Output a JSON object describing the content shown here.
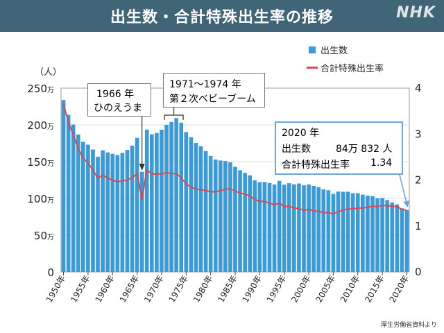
{
  "header": {
    "title": "出生数・合計特殊出生率の推移",
    "logo": "NHK"
  },
  "legend": {
    "births": "出生数",
    "tfr": "合計特殊出生率"
  },
  "annotations": {
    "hinoeuma": {
      "line1": "1966 年",
      "line2": "ひのえうま"
    },
    "babyboom": {
      "line1": "1971〜1974 年",
      "line2": "第２次ベビーブーム"
    },
    "latest": {
      "year": "2020 年",
      "births_label": "出生数",
      "births_value": "84万 832 人",
      "tfr_label": "合計特殊出生率",
      "tfr_value": "1.34"
    }
  },
  "source": "厚生労働省資料より",
  "colors": {
    "bar": "#3b9ad8",
    "line": "#d9484c",
    "header": "#3f6577",
    "annotation_border": "#6aa6dc"
  },
  "chart_data": {
    "type": "bar",
    "ylabel": "（人）",
    "ylim": [
      0,
      2500000
    ],
    "y2lim": [
      0,
      4
    ],
    "y_ticks": [
      {
        "value": 0,
        "label": "0"
      },
      {
        "value": 500000,
        "label": "50万"
      },
      {
        "value": 1000000,
        "label": "100万"
      },
      {
        "value": 1500000,
        "label": "150万"
      },
      {
        "value": 2000000,
        "label": "200万"
      },
      {
        "value": 2500000,
        "label": "250万"
      }
    ],
    "y2_ticks": [
      "0",
      "1",
      "2",
      "3",
      "4"
    ],
    "x_tick_labels": [
      "1950年",
      "1955年",
      "1960年",
      "1965年",
      "1970年",
      "1975年",
      "1980年",
      "1985年",
      "1990年",
      "1995年",
      "2000年",
      "2005年",
      "2010年",
      "2015年",
      "2020年"
    ],
    "x": [
      1950,
      1951,
      1952,
      1953,
      1954,
      1955,
      1956,
      1957,
      1958,
      1959,
      1960,
      1961,
      1962,
      1963,
      1964,
      1965,
      1966,
      1967,
      1968,
      1969,
      1970,
      1971,
      1972,
      1973,
      1974,
      1975,
      1976,
      1977,
      1978,
      1979,
      1980,
      1981,
      1982,
      1983,
      1984,
      1985,
      1986,
      1987,
      1988,
      1989,
      1990,
      1991,
      1992,
      1993,
      1994,
      1995,
      1996,
      1997,
      1998,
      1999,
      2000,
      2001,
      2002,
      2003,
      2004,
      2005,
      2006,
      2007,
      2008,
      2009,
      2010,
      2011,
      2012,
      2013,
      2014,
      2015,
      2016,
      2017,
      2018,
      2019,
      2020
    ],
    "series": [
      {
        "name": "出生数",
        "axis": "left",
        "values": [
          2337507,
          2137689,
          2005162,
          1868040,
          1769580,
          1730692,
          1665278,
          1566713,
          1653469,
          1626088,
          1606041,
          1589372,
          1618616,
          1659521,
          1716761,
          1823697,
          1360974,
          1935647,
          1871839,
          1889815,
          1934239,
          2000973,
          2038682,
          2091983,
          2029989,
          1901440,
          1832617,
          1755100,
          1708643,
          1642580,
          1576889,
          1529455,
          1515392,
          1508687,
          1489780,
          1431577,
          1382946,
          1346658,
          1314006,
          1246802,
          1221585,
          1223245,
          1208989,
          1188282,
          1238328,
          1187064,
          1206555,
          1191665,
          1203147,
          1177669,
          1190547,
          1170662,
          1153855,
          1123610,
          1110721,
          1062530,
          1092674,
          1089818,
          1091156,
          1070035,
          1071304,
          1050806,
          1037231,
          1029816,
          1003539,
          1005721,
          977242,
          946146,
          918400,
          865239,
          840832
        ]
      },
      {
        "name": "合計特殊出生率",
        "axis": "right",
        "values": [
          3.65,
          3.26,
          2.98,
          2.69,
          2.48,
          2.37,
          2.22,
          2.04,
          2.11,
          2.04,
          2.0,
          1.96,
          1.98,
          2.0,
          2.05,
          2.14,
          1.58,
          2.23,
          2.13,
          2.13,
          2.13,
          2.16,
          2.14,
          2.14,
          2.05,
          1.91,
          1.85,
          1.8,
          1.79,
          1.77,
          1.75,
          1.74,
          1.77,
          1.8,
          1.81,
          1.76,
          1.72,
          1.69,
          1.66,
          1.57,
          1.54,
          1.53,
          1.5,
          1.46,
          1.5,
          1.42,
          1.43,
          1.39,
          1.38,
          1.34,
          1.36,
          1.33,
          1.32,
          1.29,
          1.29,
          1.26,
          1.32,
          1.34,
          1.37,
          1.37,
          1.39,
          1.39,
          1.41,
          1.43,
          1.42,
          1.45,
          1.44,
          1.43,
          1.42,
          1.36,
          1.34
        ]
      }
    ]
  }
}
